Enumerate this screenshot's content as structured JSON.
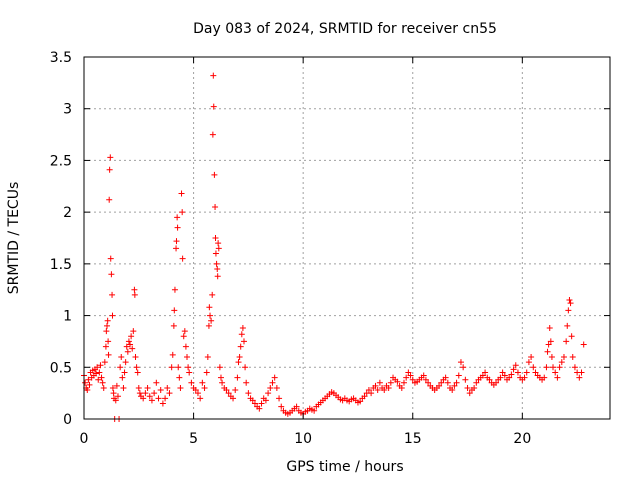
{
  "chart_data": {
    "type": "scatter",
    "title": "Day 083 of 2024, SRMTID for receiver cn55",
    "xlabel": "GPS time / hours",
    "ylabel": "SRMTID / TECUs",
    "xlim": [
      0,
      24
    ],
    "ylim": [
      0,
      3.5
    ],
    "x_ticks": [
      0,
      5,
      10,
      15,
      20
    ],
    "x_tick_labels": [
      "0",
      "5",
      "10",
      "15",
      "20"
    ],
    "y_ticks": [
      0,
      0.5,
      1,
      1.5,
      2,
      2.5,
      3,
      3.5
    ],
    "y_tick_labels": [
      "0",
      "0.5",
      "1",
      "1.5",
      "2",
      "2.5",
      "3",
      "3.5"
    ],
    "grid": true,
    "marker": "+",
    "color": "#ff0000",
    "series": [
      {
        "name": "cn55",
        "points": [
          [
            0.0,
            0.42
          ],
          [
            0.05,
            0.35
          ],
          [
            0.1,
            0.3
          ],
          [
            0.15,
            0.28
          ],
          [
            0.2,
            0.38
          ],
          [
            0.25,
            0.33
          ],
          [
            0.3,
            0.45
          ],
          [
            0.35,
            0.4
          ],
          [
            0.4,
            0.47
          ],
          [
            0.45,
            0.42
          ],
          [
            0.5,
            0.48
          ],
          [
            0.55,
            0.44
          ],
          [
            0.6,
            0.5
          ],
          [
            0.65,
            0.38
          ],
          [
            0.7,
            0.45
          ],
          [
            0.75,
            0.52
          ],
          [
            0.8,
            0.4
          ],
          [
            0.85,
            0.35
          ],
          [
            0.9,
            0.3
          ],
          [
            0.95,
            0.55
          ],
          [
            1.0,
            0.7
          ],
          [
            1.02,
            0.85
          ],
          [
            1.05,
            0.9
          ],
          [
            1.08,
            0.95
          ],
          [
            1.1,
            0.75
          ],
          [
            1.12,
            0.62
          ],
          [
            1.15,
            2.12
          ],
          [
            1.17,
            2.41
          ],
          [
            1.2,
            2.53
          ],
          [
            1.22,
            1.55
          ],
          [
            1.25,
            1.4
          ],
          [
            1.28,
            1.2
          ],
          [
            1.3,
            1.0
          ],
          [
            1.32,
            0.3
          ],
          [
            1.35,
            0.25
          ],
          [
            1.37,
            0.2
          ],
          [
            1.4,
            0.0
          ],
          [
            1.45,
            0.18
          ],
          [
            1.5,
            0.32
          ],
          [
            1.55,
            0.22
          ],
          [
            1.6,
            0.0
          ],
          [
            1.65,
            0.5
          ],
          [
            1.7,
            0.6
          ],
          [
            1.75,
            0.4
          ],
          [
            1.8,
            0.3
          ],
          [
            1.85,
            0.45
          ],
          [
            1.9,
            0.55
          ],
          [
            1.95,
            0.7
          ],
          [
            2.0,
            0.65
          ],
          [
            2.05,
            0.75
          ],
          [
            2.1,
            0.72
          ],
          [
            2.15,
            0.8
          ],
          [
            2.2,
            0.68
          ],
          [
            2.25,
            0.85
          ],
          [
            2.3,
            1.25
          ],
          [
            2.32,
            1.2
          ],
          [
            2.35,
            0.6
          ],
          [
            2.4,
            0.5
          ],
          [
            2.45,
            0.45
          ],
          [
            2.5,
            0.3
          ],
          [
            2.55,
            0.25
          ],
          [
            2.6,
            0.22
          ],
          [
            2.7,
            0.2
          ],
          [
            2.8,
            0.25
          ],
          [
            2.9,
            0.3
          ],
          [
            3.0,
            0.22
          ],
          [
            3.1,
            0.18
          ],
          [
            3.2,
            0.25
          ],
          [
            3.3,
            0.35
          ],
          [
            3.4,
            0.2
          ],
          [
            3.5,
            0.28
          ],
          [
            3.6,
            0.15
          ],
          [
            3.7,
            0.2
          ],
          [
            3.8,
            0.3
          ],
          [
            3.9,
            0.25
          ],
          [
            4.0,
            0.5
          ],
          [
            4.05,
            0.62
          ],
          [
            4.1,
            0.9
          ],
          [
            4.12,
            1.05
          ],
          [
            4.15,
            1.25
          ],
          [
            4.2,
            1.65
          ],
          [
            4.22,
            1.72
          ],
          [
            4.25,
            1.95
          ],
          [
            4.27,
            1.85
          ],
          [
            4.3,
            0.5
          ],
          [
            4.35,
            0.4
          ],
          [
            4.4,
            0.3
          ],
          [
            4.45,
            2.18
          ],
          [
            4.48,
            2.0
          ],
          [
            4.5,
            1.55
          ],
          [
            4.55,
            0.8
          ],
          [
            4.6,
            0.85
          ],
          [
            4.65,
            0.7
          ],
          [
            4.7,
            0.6
          ],
          [
            4.75,
            0.5
          ],
          [
            4.8,
            0.45
          ],
          [
            4.9,
            0.35
          ],
          [
            5.0,
            0.3
          ],
          [
            5.1,
            0.28
          ],
          [
            5.2,
            0.25
          ],
          [
            5.3,
            0.2
          ],
          [
            5.4,
            0.35
          ],
          [
            5.5,
            0.3
          ],
          [
            5.6,
            0.45
          ],
          [
            5.65,
            0.6
          ],
          [
            5.7,
            0.9
          ],
          [
            5.72,
            1.08
          ],
          [
            5.75,
            1.0
          ],
          [
            5.8,
            0.95
          ],
          [
            5.85,
            1.2
          ],
          [
            5.88,
            2.75
          ],
          [
            5.9,
            3.32
          ],
          [
            5.92,
            3.02
          ],
          [
            5.95,
            2.36
          ],
          [
            5.98,
            2.05
          ],
          [
            6.0,
            1.75
          ],
          [
            6.02,
            1.6
          ],
          [
            6.05,
            1.5
          ],
          [
            6.08,
            1.45
          ],
          [
            6.1,
            1.38
          ],
          [
            6.12,
            1.7
          ],
          [
            6.15,
            1.65
          ],
          [
            6.2,
            0.5
          ],
          [
            6.25,
            0.4
          ],
          [
            6.3,
            0.35
          ],
          [
            6.4,
            0.3
          ],
          [
            6.5,
            0.28
          ],
          [
            6.6,
            0.25
          ],
          [
            6.7,
            0.22
          ],
          [
            6.8,
            0.2
          ],
          [
            6.9,
            0.28
          ],
          [
            7.0,
            0.4
          ],
          [
            7.05,
            0.55
          ],
          [
            7.1,
            0.6
          ],
          [
            7.15,
            0.7
          ],
          [
            7.2,
            0.82
          ],
          [
            7.25,
            0.88
          ],
          [
            7.3,
            0.75
          ],
          [
            7.35,
            0.5
          ],
          [
            7.4,
            0.35
          ],
          [
            7.5,
            0.25
          ],
          [
            7.6,
            0.2
          ],
          [
            7.7,
            0.18
          ],
          [
            7.8,
            0.15
          ],
          [
            7.9,
            0.12
          ],
          [
            8.0,
            0.1
          ],
          [
            8.1,
            0.15
          ],
          [
            8.2,
            0.2
          ],
          [
            8.3,
            0.18
          ],
          [
            8.4,
            0.25
          ],
          [
            8.5,
            0.3
          ],
          [
            8.6,
            0.35
          ],
          [
            8.7,
            0.4
          ],
          [
            8.8,
            0.3
          ],
          [
            8.9,
            0.2
          ],
          [
            9.0,
            0.12
          ],
          [
            9.1,
            0.08
          ],
          [
            9.2,
            0.06
          ],
          [
            9.3,
            0.05
          ],
          [
            9.4,
            0.06
          ],
          [
            9.5,
            0.08
          ],
          [
            9.6,
            0.1
          ],
          [
            9.7,
            0.12
          ],
          [
            9.8,
            0.08
          ],
          [
            9.9,
            0.06
          ],
          [
            10.0,
            0.05
          ],
          [
            10.1,
            0.07
          ],
          [
            10.2,
            0.08
          ],
          [
            10.3,
            0.1
          ],
          [
            10.4,
            0.09
          ],
          [
            10.5,
            0.08
          ],
          [
            10.6,
            0.12
          ],
          [
            10.7,
            0.14
          ],
          [
            10.8,
            0.16
          ],
          [
            10.9,
            0.18
          ],
          [
            11.0,
            0.2
          ],
          [
            11.1,
            0.22
          ],
          [
            11.2,
            0.24
          ],
          [
            11.3,
            0.26
          ],
          [
            11.4,
            0.25
          ],
          [
            11.5,
            0.23
          ],
          [
            11.6,
            0.21
          ],
          [
            11.7,
            0.19
          ],
          [
            11.8,
            0.18
          ],
          [
            11.9,
            0.2
          ],
          [
            12.0,
            0.18
          ],
          [
            12.1,
            0.17
          ],
          [
            12.2,
            0.19
          ],
          [
            12.3,
            0.2
          ],
          [
            12.4,
            0.18
          ],
          [
            12.5,
            0.16
          ],
          [
            12.6,
            0.17
          ],
          [
            12.7,
            0.2
          ],
          [
            12.8,
            0.22
          ],
          [
            12.9,
            0.25
          ],
          [
            13.0,
            0.28
          ],
          [
            13.1,
            0.25
          ],
          [
            13.2,
            0.3
          ],
          [
            13.3,
            0.32
          ],
          [
            13.4,
            0.28
          ],
          [
            13.5,
            0.35
          ],
          [
            13.6,
            0.3
          ],
          [
            13.7,
            0.28
          ],
          [
            13.8,
            0.32
          ],
          [
            13.9,
            0.3
          ],
          [
            14.0,
            0.35
          ],
          [
            14.1,
            0.4
          ],
          [
            14.2,
            0.38
          ],
          [
            14.3,
            0.36
          ],
          [
            14.4,
            0.32
          ],
          [
            14.5,
            0.3
          ],
          [
            14.6,
            0.35
          ],
          [
            14.7,
            0.4
          ],
          [
            14.8,
            0.45
          ],
          [
            14.9,
            0.42
          ],
          [
            15.0,
            0.38
          ],
          [
            15.1,
            0.35
          ],
          [
            15.2,
            0.36
          ],
          [
            15.3,
            0.38
          ],
          [
            15.4,
            0.4
          ],
          [
            15.5,
            0.42
          ],
          [
            15.6,
            0.38
          ],
          [
            15.7,
            0.35
          ],
          [
            15.8,
            0.32
          ],
          [
            15.9,
            0.3
          ],
          [
            16.0,
            0.28
          ],
          [
            16.1,
            0.3
          ],
          [
            16.2,
            0.32
          ],
          [
            16.3,
            0.35
          ],
          [
            16.4,
            0.38
          ],
          [
            16.5,
            0.4
          ],
          [
            16.6,
            0.35
          ],
          [
            16.7,
            0.3
          ],
          [
            16.8,
            0.28
          ],
          [
            16.9,
            0.32
          ],
          [
            17.0,
            0.35
          ],
          [
            17.1,
            0.42
          ],
          [
            17.2,
            0.55
          ],
          [
            17.3,
            0.5
          ],
          [
            17.4,
            0.38
          ],
          [
            17.5,
            0.3
          ],
          [
            17.6,
            0.25
          ],
          [
            17.7,
            0.28
          ],
          [
            17.8,
            0.3
          ],
          [
            17.9,
            0.35
          ],
          [
            18.0,
            0.38
          ],
          [
            18.1,
            0.4
          ],
          [
            18.2,
            0.42
          ],
          [
            18.3,
            0.45
          ],
          [
            18.4,
            0.4
          ],
          [
            18.5,
            0.38
          ],
          [
            18.6,
            0.35
          ],
          [
            18.7,
            0.33
          ],
          [
            18.8,
            0.35
          ],
          [
            18.9,
            0.38
          ],
          [
            19.0,
            0.4
          ],
          [
            19.1,
            0.45
          ],
          [
            19.2,
            0.42
          ],
          [
            19.3,
            0.38
          ],
          [
            19.4,
            0.4
          ],
          [
            19.5,
            0.43
          ],
          [
            19.6,
            0.48
          ],
          [
            19.7,
            0.52
          ],
          [
            19.8,
            0.45
          ],
          [
            19.9,
            0.4
          ],
          [
            20.0,
            0.38
          ],
          [
            20.1,
            0.4
          ],
          [
            20.2,
            0.45
          ],
          [
            20.3,
            0.55
          ],
          [
            20.4,
            0.6
          ],
          [
            20.5,
            0.5
          ],
          [
            20.6,
            0.45
          ],
          [
            20.7,
            0.42
          ],
          [
            20.8,
            0.4
          ],
          [
            20.9,
            0.38
          ],
          [
            21.0,
            0.4
          ],
          [
            21.1,
            0.5
          ],
          [
            21.15,
            0.65
          ],
          [
            21.2,
            0.72
          ],
          [
            21.25,
            0.88
          ],
          [
            21.3,
            0.75
          ],
          [
            21.35,
            0.6
          ],
          [
            21.4,
            0.5
          ],
          [
            21.5,
            0.45
          ],
          [
            21.6,
            0.4
          ],
          [
            21.7,
            0.5
          ],
          [
            21.8,
            0.55
          ],
          [
            21.9,
            0.6
          ],
          [
            22.0,
            0.75
          ],
          [
            22.05,
            0.9
          ],
          [
            22.1,
            1.05
          ],
          [
            22.15,
            1.15
          ],
          [
            22.2,
            1.12
          ],
          [
            22.25,
            0.8
          ],
          [
            22.3,
            0.6
          ],
          [
            22.4,
            0.5
          ],
          [
            22.5,
            0.45
          ],
          [
            22.6,
            0.4
          ],
          [
            22.7,
            0.45
          ],
          [
            22.8,
            0.72
          ]
        ]
      }
    ]
  }
}
